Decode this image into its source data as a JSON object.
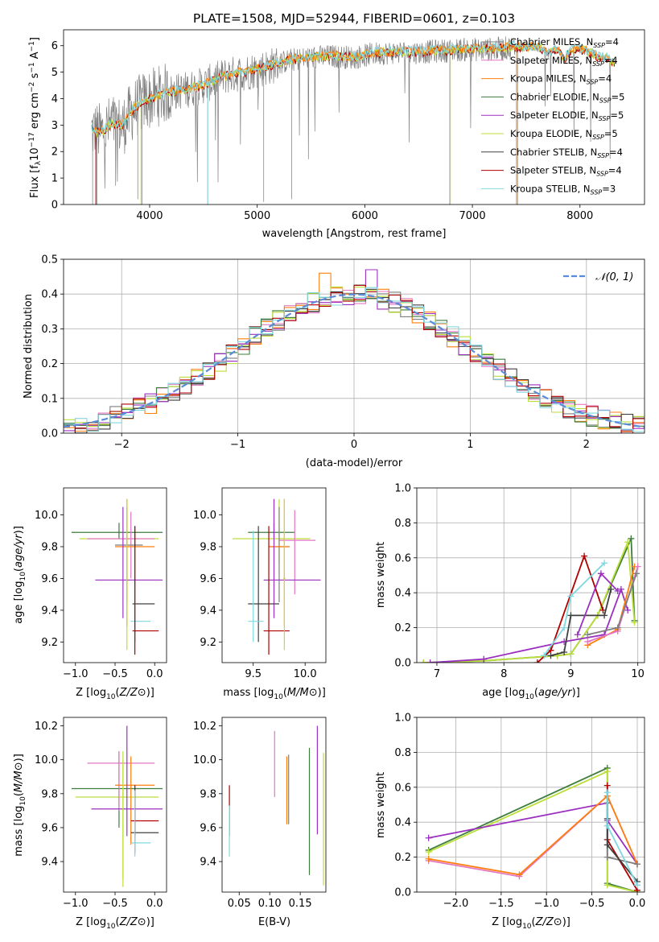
{
  "colors": {
    "chabrier_miles": "#7f7f7f",
    "salpeter_miles": "#e377c2",
    "kroupa_miles": "#ff7f0e",
    "chabrier_elodie": "#3e7d3e",
    "salpeter_elodie": "#9b30c0",
    "kroupa_elodie": "#bcde3a",
    "chabrier_stelib": "#404040",
    "salpeter_stelib": "#b00000",
    "kroupa_stelib": "#80d8e0",
    "gaussian": "#5b8bd6"
  },
  "chart_data": [
    {
      "type": "line",
      "title": "PLATE=1508, MJD=52944, FIBERID=0601, z=0.103",
      "xlabel": "wavelength [Angstrom, rest frame]",
      "ylabel": "Flux [fλ10⁻¹⁷ erg cm⁻² s⁻¹ A⁻¹]",
      "xlim": [
        3200,
        8600
      ],
      "ylim": [
        0,
        6.6
      ],
      "xticks": [
        4000,
        5000,
        6000,
        7000,
        8000
      ],
      "yticks": [
        0,
        1,
        2,
        3,
        4,
        5,
        6
      ],
      "legend_position": "right",
      "legend": [
        {
          "prefix": "Chabrier MILES, N",
          "suffix": "=4"
        },
        {
          "prefix": "Salpeter MILES, N",
          "suffix": "=4"
        },
        {
          "prefix": "Kroupa MILES, N",
          "suffix": "=4"
        },
        {
          "prefix": "Chabrier ELODIE, N",
          "suffix": "=5"
        },
        {
          "prefix": "Salpeter ELODIE, N",
          "suffix": "=5"
        },
        {
          "prefix": "Kroupa ELODIE, N",
          "suffix": "=5"
        },
        {
          "prefix": "Chabrier STELIB, N",
          "suffix": "=4"
        },
        {
          "prefix": "Salpeter STELIB, N",
          "suffix": "=4"
        },
        {
          "prefix": "Kroupa STELIB, N",
          "suffix": "=3"
        }
      ],
      "legend_sub": "SSP",
      "continuum": {
        "x": [
          3450,
          3550,
          3650,
          3750,
          3850,
          3950,
          4050,
          4150,
          4300,
          4500,
          4700,
          4900,
          5100,
          5300,
          5500,
          5700,
          5900,
          6100,
          6300,
          6500,
          6700,
          6900,
          7100,
          7300,
          7400
        ],
        "y": [
          2.8,
          2.7,
          3.05,
          2.95,
          3.6,
          3.9,
          4.05,
          4.2,
          4.3,
          4.5,
          4.85,
          5.0,
          5.2,
          5.45,
          5.55,
          5.6,
          5.55,
          5.7,
          5.75,
          5.75,
          5.8,
          5.85,
          5.85,
          5.9,
          5.95
        ]
      },
      "model_tail": {
        "x": [
          7400,
          7600,
          7700,
          7800,
          7850,
          7950,
          8050,
          8150,
          8250,
          8330
        ],
        "y": [
          5.9,
          5.95,
          5.7,
          5.85,
          5.5,
          5.9,
          5.8,
          5.6,
          5.5,
          5.35
        ]
      }
    },
    {
      "type": "histogram",
      "xlabel": "(data-model)/error",
      "ylabel": "Normed distribution",
      "xlim": [
        -2.5,
        2.5
      ],
      "ylim": [
        0,
        0.5
      ],
      "xticks": [
        -2,
        -1,
        0,
        1,
        2
      ],
      "yticks": [
        0.0,
        0.1,
        0.2,
        0.3,
        0.4,
        0.5
      ],
      "legend": "𝒩(0, 1)",
      "bin_width": 0.1,
      "base_start": -2.5,
      "grid": true
    },
    {
      "type": "scatter",
      "xlabel": "Z [log10(Z/Z⊙)]",
      "ylabel": "age  [log10(age/yr)]",
      "xlim": [
        -1.15,
        0.15
      ],
      "ylim": [
        9.07,
        10.17
      ],
      "xticks": [
        -1.0,
        -0.5,
        0.0
      ],
      "yticks": [
        9.2,
        9.4,
        9.6,
        9.8,
        10.0
      ],
      "errorbars": [
        {
          "x": -0.45,
          "y": 9.89,
          "xl": -1.05,
          "xr": 0.1,
          "yl": 9.85,
          "yr": 9.95,
          "color": "chabrier_elodie"
        },
        {
          "x": -0.35,
          "y": 9.85,
          "xl": -0.95,
          "xr": 0.05,
          "yl": 9.7,
          "yr": 10.05,
          "color": "kroupa_elodie"
        },
        {
          "x": -0.3,
          "y": 9.85,
          "xl": -0.85,
          "xr": 0.0,
          "yl": 9.6,
          "yr": 10.02,
          "color": "salpeter_miles"
        },
        {
          "x": -0.35,
          "y": 9.81,
          "xl": -0.5,
          "xr": -0.15,
          "yl": 9.45,
          "yr": 10.05,
          "color": "chabrier_miles"
        },
        {
          "x": -0.35,
          "y": 9.8,
          "xl": -0.5,
          "xr": 0.0,
          "yl": 9.3,
          "yr": 10.1,
          "color": "kroupa_miles"
        },
        {
          "x": -0.4,
          "y": 9.59,
          "xl": -0.75,
          "xr": 0.1,
          "yl": 9.35,
          "yr": 10.05,
          "color": "salpeter_elodie"
        },
        {
          "x": -0.25,
          "y": 9.44,
          "xl": -0.28,
          "xr": 0.0,
          "yl": 9.2,
          "yr": 9.93,
          "color": "chabrier_stelib"
        },
        {
          "x": -0.25,
          "y": 9.33,
          "xl": -0.3,
          "xr": -0.05,
          "yl": 9.2,
          "yr": 9.55,
          "color": "kroupa_stelib"
        },
        {
          "x": -0.25,
          "y": 9.27,
          "xl": -0.28,
          "xr": 0.05,
          "yl": 9.12,
          "yr": 9.93,
          "color": "salpeter_stelib"
        },
        {
          "x": -0.35,
          "y": 9.6,
          "xl": -0.36,
          "xr": -0.34,
          "yl": 9.15,
          "yr": 10.1,
          "color": "kroupa_elodie"
        }
      ]
    },
    {
      "type": "scatter",
      "xlabel": "mass [log10(M/M⊙)]",
      "ylabel": "",
      "xlim": [
        9.2,
        10.2
      ],
      "ylim": [
        9.07,
        10.17
      ],
      "xticks": [
        9.5,
        10.0
      ],
      "yticks": [
        9.2,
        9.4,
        9.6,
        9.8,
        10.0
      ],
      "errorbars": [
        {
          "x": 9.7,
          "y": 9.89,
          "xl": 9.45,
          "xr": 9.9,
          "yl": 9.85,
          "yr": 9.95,
          "color": "chabrier_elodie"
        },
        {
          "x": 9.75,
          "y": 9.85,
          "xl": 9.3,
          "xr": 10.05,
          "yl": 9.7,
          "yr": 10.1,
          "color": "kroupa_elodie"
        },
        {
          "x": 9.9,
          "y": 9.84,
          "xl": 9.75,
          "xr": 10.1,
          "yl": 9.5,
          "yr": 10.03,
          "color": "salpeter_miles"
        },
        {
          "x": 9.75,
          "y": 9.8,
          "xl": 9.65,
          "xr": 9.85,
          "yl": 9.45,
          "yr": 10.05,
          "color": "chabrier_miles"
        },
        {
          "x": 9.8,
          "y": 9.8,
          "xl": 9.65,
          "xr": 9.85,
          "yl": 9.3,
          "yr": 10.1,
          "color": "kroupa_miles"
        },
        {
          "x": 9.7,
          "y": 9.59,
          "xl": 9.6,
          "xr": 10.15,
          "yl": 9.35,
          "yr": 10.1,
          "color": "salpeter_elodie"
        },
        {
          "x": 9.55,
          "y": 9.44,
          "xl": 9.45,
          "xr": 9.75,
          "yl": 9.2,
          "yr": 9.93,
          "color": "chabrier_stelib"
        },
        {
          "x": 9.5,
          "y": 9.33,
          "xl": 9.45,
          "xr": 9.6,
          "yl": 9.2,
          "yr": 9.9,
          "color": "kroupa_stelib"
        },
        {
          "x": 9.65,
          "y": 9.27,
          "xl": 9.6,
          "xr": 9.85,
          "yl": 9.12,
          "yr": 9.93,
          "color": "salpeter_stelib"
        },
        {
          "x": 9.8,
          "y": 9.6,
          "xl": 9.79,
          "xr": 9.81,
          "yl": 9.15,
          "yr": 10.1,
          "color": "kroupa_elodie"
        }
      ]
    },
    {
      "type": "line",
      "xlabel": "age  [log10(age/yr)]",
      "ylabel": "mass weight",
      "xlim": [
        6.7,
        10.1
      ],
      "ylim": [
        0,
        1.0
      ],
      "xticks": [
        7,
        8,
        9,
        10
      ],
      "yticks": [
        0.0,
        0.2,
        0.4,
        0.6,
        0.8,
        1.0
      ],
      "grid": true,
      "series": [
        {
          "color": "chabrier_elodie",
          "x": [
            6.8,
            7.7,
            8.8,
            9.0,
            9.4,
            9.9,
            9.95
          ],
          "y": [
            0.0,
            0.01,
            0.04,
            0.05,
            0.27,
            0.71,
            0.24
          ]
        },
        {
          "color": "kroupa_elodie",
          "x": [
            6.8,
            7.7,
            8.8,
            9.0,
            9.4,
            9.85,
            9.95
          ],
          "y": [
            0.0,
            0.01,
            0.04,
            0.05,
            0.27,
            0.69,
            0.23
          ]
        },
        {
          "color": "salpeter_elodie",
          "x": [
            6.9,
            7.7,
            8.9,
            9.5,
            9.75,
            9.85
          ],
          "y": [
            0.0,
            0.02,
            0.12,
            0.16,
            0.42,
            0.3
          ]
        },
        {
          "color": "salpeter_stelib",
          "x": [
            8.5,
            8.7,
            9.2,
            9.48
          ],
          "y": [
            0.0,
            0.07,
            0.61,
            0.3
          ]
        },
        {
          "color": "chabrier_stelib",
          "x": [
            8.7,
            8.9,
            9.0,
            9.5,
            9.6
          ],
          "y": [
            0.04,
            0.06,
            0.27,
            0.27,
            0.42
          ]
        },
        {
          "color": "kroupa_stelib",
          "x": [
            8.6,
            8.9,
            9.0,
            9.5
          ],
          "y": [
            0.04,
            0.2,
            0.38,
            0.57
          ]
        },
        {
          "color": "salpeter_elodie",
          "x": [
            9.1,
            9.45,
            9.7
          ],
          "y": [
            0.16,
            0.51,
            0.41
          ]
        },
        {
          "color": "kroupa_miles",
          "x": [
            9.25,
            9.7,
            9.95
          ],
          "y": [
            0.1,
            0.19,
            0.55
          ]
        },
        {
          "color": "salpeter_miles",
          "x": [
            9.25,
            9.7,
            10.0
          ],
          "y": [
            0.12,
            0.18,
            0.55
          ]
        },
        {
          "color": "chabrier_miles",
          "x": [
            9.25,
            9.7,
            9.98
          ],
          "y": [
            0.16,
            0.2,
            0.51
          ]
        }
      ]
    },
    {
      "type": "scatter",
      "xlabel": "Z [log10(Z/Z⊙)]",
      "ylabel": "mass [log10(M/M⊙)]",
      "xlim": [
        -1.15,
        0.15
      ],
      "ylim": [
        9.22,
        10.25
      ],
      "xticks": [
        -1.0,
        -0.5,
        0.0
      ],
      "yticks": [
        9.4,
        9.6,
        9.8,
        10.0,
        10.2
      ],
      "errorbars": [
        {
          "x": -0.45,
          "y": 9.83,
          "xl": -1.05,
          "xr": 0.1,
          "yl": 9.6,
          "yr": 10.05,
          "color": "chabrier_elodie"
        },
        {
          "x": -0.4,
          "y": 9.78,
          "xl": -1.0,
          "xr": 0.05,
          "yl": 9.3,
          "yr": 10.0,
          "color": "kroupa_elodie"
        },
        {
          "x": -0.45,
          "y": 9.98,
          "xl": -0.85,
          "xr": 0.0,
          "yl": 9.7,
          "yr": 10.05,
          "color": "salpeter_miles"
        },
        {
          "x": -0.3,
          "y": 9.85,
          "xl": -0.5,
          "xr": 0.0,
          "yl": 9.5,
          "yr": 10.02,
          "color": "kroupa_miles"
        },
        {
          "x": -0.35,
          "y": 9.71,
          "xl": -0.8,
          "xr": 0.1,
          "yl": 9.55,
          "yr": 10.2,
          "color": "salpeter_elodie"
        },
        {
          "x": -0.25,
          "y": 9.64,
          "xl": -0.3,
          "xr": 0.05,
          "yl": 9.55,
          "yr": 9.85,
          "color": "salpeter_stelib"
        },
        {
          "x": -0.25,
          "y": 9.57,
          "xl": -0.3,
          "xr": 0.05,
          "yl": 9.45,
          "yr": 9.85,
          "color": "chabrier_stelib"
        },
        {
          "x": -0.25,
          "y": 9.51,
          "xl": -0.3,
          "xr": -0.05,
          "yl": 9.43,
          "yr": 9.82,
          "color": "kroupa_stelib"
        },
        {
          "x": -0.4,
          "y": 9.8,
          "xl": -0.41,
          "xr": -0.39,
          "yl": 9.25,
          "yr": 10.05,
          "color": "kroupa_elodie"
        }
      ]
    },
    {
      "type": "scatter",
      "xlabel": "E(B-V)",
      "ylabel": "",
      "xlim": [
        0.022,
        0.192
      ],
      "ylim": [
        9.22,
        10.25
      ],
      "xticks": [
        0.05,
        0.1,
        0.15
      ],
      "yticks": [
        9.4,
        9.6,
        9.8,
        10.0,
        10.2
      ],
      "errorbars": [
        {
          "x": 0.034,
          "y": 9.65,
          "xl": 0.034,
          "xr": 0.034,
          "yl": 9.55,
          "yr": 9.85,
          "color": "salpeter_stelib"
        },
        {
          "x": 0.034,
          "y": 9.6,
          "xl": 0.034,
          "xr": 0.034,
          "yl": 9.43,
          "yr": 9.73,
          "color": "kroupa_stelib"
        },
        {
          "x": 0.108,
          "y": 9.95,
          "xl": 0.108,
          "xr": 0.108,
          "yl": 9.78,
          "yr": 10.17,
          "color": "salpeter_miles"
        },
        {
          "x": 0.128,
          "y": 9.85,
          "xl": 0.128,
          "xr": 0.128,
          "yl": 9.62,
          "yr": 10.02,
          "color": "kroupa_miles"
        },
        {
          "x": 0.131,
          "y": 9.8,
          "xl": 0.131,
          "xr": 0.131,
          "yl": 9.62,
          "yr": 10.03,
          "color": "chabrier_miles"
        },
        {
          "x": 0.165,
          "y": 9.7,
          "xl": 0.165,
          "xr": 0.165,
          "yl": 9.32,
          "yr": 10.07,
          "color": "chabrier_elodie"
        },
        {
          "x": 0.178,
          "y": 9.85,
          "xl": 0.178,
          "xr": 0.178,
          "yl": 9.56,
          "yr": 10.2,
          "color": "salpeter_elodie"
        },
        {
          "x": 0.188,
          "y": 9.7,
          "xl": 0.188,
          "xr": 0.188,
          "yl": 9.26,
          "yr": 10.04,
          "color": "kroupa_elodie"
        }
      ]
    },
    {
      "type": "line",
      "xlabel": "Z [log10(Z/Z⊙)]",
      "ylabel": "mass weight",
      "xlim": [
        -2.43,
        0.08
      ],
      "ylim": [
        0,
        1.0
      ],
      "xticks": [
        -2.0,
        -1.5,
        -1.0,
        -0.5,
        0.0
      ],
      "yticks": [
        0.0,
        0.2,
        0.4,
        0.6,
        0.8,
        1.0
      ],
      "grid": true,
      "series": [
        {
          "color": "chabrier_elodie",
          "x": [
            -2.3,
            -0.33,
            -0.33,
            0.0
          ],
          "y": [
            0.24,
            0.71,
            0.05,
            0.0
          ]
        },
        {
          "color": "kroupa_elodie",
          "x": [
            -2.3,
            -0.33,
            -0.33,
            0.0
          ],
          "y": [
            0.23,
            0.69,
            0.04,
            0.0
          ]
        },
        {
          "color": "salpeter_elodie",
          "x": [
            -2.3,
            -0.33,
            -0.33,
            0.0
          ],
          "y": [
            0.31,
            0.51,
            0.41,
            0.16
          ]
        },
        {
          "color": "salpeter_miles",
          "x": [
            -2.3,
            -1.3,
            -0.33,
            0.0
          ],
          "y": [
            0.18,
            0.09,
            0.55,
            0.16
          ]
        },
        {
          "color": "kroupa_miles",
          "x": [
            -2.3,
            -1.3,
            -0.33,
            0.0
          ],
          "y": [
            0.19,
            0.1,
            0.55,
            0.16
          ]
        },
        {
          "color": "chabrier_miles",
          "x": [
            -0.33,
            -0.33,
            0.0
          ],
          "y": [
            0.51,
            0.2,
            0.16
          ]
        },
        {
          "color": "salpeter_stelib",
          "x": [
            -0.33,
            -0.33,
            0.0
          ],
          "y": [
            0.61,
            0.3,
            0.01
          ]
        },
        {
          "color": "chabrier_stelib",
          "x": [
            -0.33,
            -0.33,
            0.0
          ],
          "y": [
            0.42,
            0.27,
            0.06
          ]
        },
        {
          "color": "kroupa_stelib",
          "x": [
            -0.33,
            -0.33,
            0.0
          ],
          "y": [
            0.57,
            0.38,
            0.04
          ]
        }
      ]
    }
  ]
}
